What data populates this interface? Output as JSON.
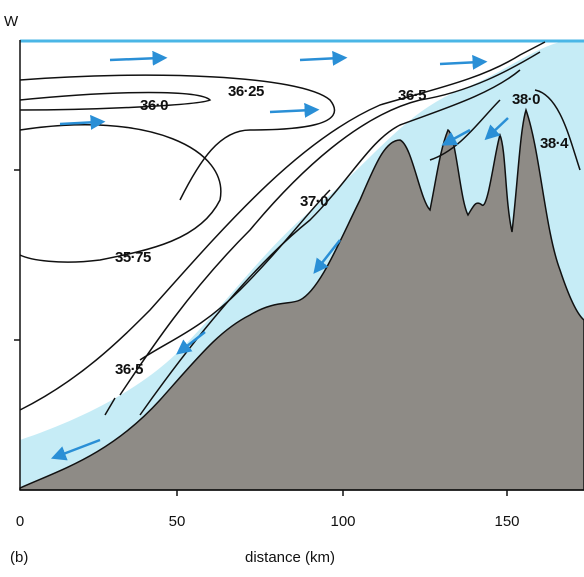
{
  "header": {
    "side_label": "W"
  },
  "contours": [
    "36·0",
    "36·25",
    "36·5",
    "38·0",
    "38·4",
    "37·0",
    "35·75",
    "36·5"
  ],
  "axis": {
    "ticks": [
      "0",
      "50",
      "100",
      "150"
    ],
    "label": "distance (km)"
  },
  "panel_label": "(b)"
}
